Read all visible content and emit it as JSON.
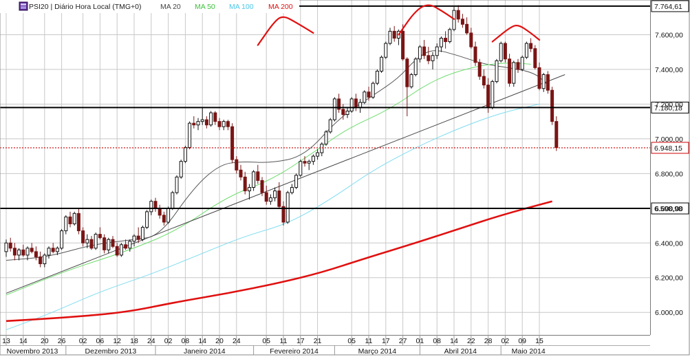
{
  "legend": {
    "title": "PSI20 | Diário Hora Local (TMG+0)",
    "ma20": "MA 20",
    "ma50": "MA 50",
    "ma100": "MA 100",
    "ma200": "MA 200"
  },
  "colors": {
    "candle_up": "#111111",
    "candle_down": "#7a1515",
    "ma20": "#555555",
    "ma50": "#6bdc6b",
    "ma100": "#7fdcf0",
    "ma200": "#e01010",
    "hline": "#000000",
    "last_line": "#cc0000",
    "annotation": "#e01010",
    "grid": "#c8c8c8"
  },
  "chart_data": {
    "type": "candlestick",
    "title": "PSI20 | Diário Hora Local (TMG+0)",
    "ylim": [
      5870,
      7800
    ],
    "y_ticks": [
      6000,
      6200,
      6400,
      6600,
      6800,
      7000,
      7200,
      7400,
      7600
    ],
    "y_tick_labels": [
      "6.000,00",
      "6.200,00",
      "6.400,00",
      "6.600,00",
      "6.800,00",
      "7.000,00",
      "7.200,00",
      "7.400,00",
      "7.600,00"
    ],
    "x_day_ticks": [
      {
        "i": 0,
        "label": "13"
      },
      {
        "i": 4,
        "label": "14"
      },
      {
        "i": 9,
        "label": "20"
      },
      {
        "i": 13,
        "label": "26"
      },
      {
        "i": 18,
        "label": "02"
      },
      {
        "i": 22,
        "label": "06"
      },
      {
        "i": 26,
        "label": "12"
      },
      {
        "i": 30,
        "label": "18"
      },
      {
        "i": 34,
        "label": "24"
      },
      {
        "i": 38,
        "label": "02"
      },
      {
        "i": 42,
        "label": "08"
      },
      {
        "i": 46,
        "label": "14"
      },
      {
        "i": 50,
        "label": "20"
      },
      {
        "i": 54,
        "label": "24"
      },
      {
        "i": 61,
        "label": "05"
      },
      {
        "i": 65,
        "label": "11"
      },
      {
        "i": 69,
        "label": "17"
      },
      {
        "i": 73,
        "label": "21"
      },
      {
        "i": 81,
        "label": "05"
      },
      {
        "i": 85,
        "label": "11"
      },
      {
        "i": 89,
        "label": "17"
      },
      {
        "i": 93,
        "label": "27"
      },
      {
        "i": 97,
        "label": "01"
      },
      {
        "i": 101,
        "label": "08"
      },
      {
        "i": 105,
        "label": "14"
      },
      {
        "i": 109,
        "label": "22"
      },
      {
        "i": 113,
        "label": "28"
      },
      {
        "i": 117,
        "label": "02"
      },
      {
        "i": 121,
        "label": "09"
      },
      {
        "i": 125,
        "label": "15"
      }
    ],
    "x_month_labels": [
      {
        "i": -1,
        "end": 14,
        "label": "Novembro 2013"
      },
      {
        "i": 14,
        "end": 35,
        "label": "Dezembro 2013"
      },
      {
        "i": 35,
        "end": 58,
        "label": "Janeiro 2014"
      },
      {
        "i": 58,
        "end": 77,
        "label": "Fevereiro 2014"
      },
      {
        "i": 77,
        "end": 97,
        "label": "Março 2014"
      },
      {
        "i": 97,
        "end": 116,
        "label": "Abril 2014"
      },
      {
        "i": 116,
        "end": 150,
        "label": "Maio 2014"
      }
    ],
    "ohlc": [
      [
        6350,
        6420,
        6320,
        6400
      ],
      [
        6400,
        6430,
        6350,
        6370
      ],
      [
        6370,
        6400,
        6300,
        6330
      ],
      [
        6330,
        6370,
        6300,
        6360
      ],
      [
        6360,
        6390,
        6320,
        6330
      ],
      [
        6330,
        6380,
        6300,
        6370
      ],
      [
        6370,
        6400,
        6340,
        6350
      ],
      [
        6350,
        6380,
        6300,
        6320
      ],
      [
        6320,
        6350,
        6260,
        6280
      ],
      [
        6280,
        6340,
        6260,
        6330
      ],
      [
        6330,
        6380,
        6310,
        6370
      ],
      [
        6370,
        6400,
        6340,
        6350
      ],
      [
        6350,
        6380,
        6330,
        6370
      ],
      [
        6370,
        6480,
        6360,
        6470
      ],
      [
        6470,
        6560,
        6450,
        6550
      ],
      [
        6550,
        6580,
        6490,
        6510
      ],
      [
        6510,
        6580,
        6500,
        6570
      ],
      [
        6570,
        6600,
        6450,
        6470
      ],
      [
        6470,
        6490,
        6380,
        6400
      ],
      [
        6400,
        6450,
        6370,
        6420
      ],
      [
        6420,
        6440,
        6360,
        6370
      ],
      [
        6370,
        6460,
        6360,
        6450
      ],
      [
        6450,
        6490,
        6420,
        6430
      ],
      [
        6430,
        6450,
        6340,
        6360
      ],
      [
        6360,
        6430,
        6340,
        6420
      ],
      [
        6420,
        6440,
        6370,
        6380
      ],
      [
        6380,
        6400,
        6320,
        6330
      ],
      [
        6330,
        6400,
        6320,
        6390
      ],
      [
        6390,
        6420,
        6360,
        6370
      ],
      [
        6370,
        6420,
        6350,
        6410
      ],
      [
        6410,
        6450,
        6380,
        6440
      ],
      [
        6440,
        6490,
        6400,
        6420
      ],
      [
        6420,
        6500,
        6410,
        6490
      ],
      [
        6490,
        6590,
        6480,
        6580
      ],
      [
        6580,
        6650,
        6560,
        6640
      ],
      [
        6640,
        6660,
        6580,
        6600
      ],
      [
        6600,
        6620,
        6540,
        6560
      ],
      [
        6560,
        6580,
        6500,
        6520
      ],
      [
        6520,
        6610,
        6510,
        6600
      ],
      [
        6600,
        6700,
        6590,
        6690
      ],
      [
        6690,
        6790,
        6680,
        6780
      ],
      [
        6780,
        6880,
        6770,
        6870
      ],
      [
        6870,
        6960,
        6860,
        6950
      ],
      [
        6950,
        7100,
        6940,
        7090
      ],
      [
        7090,
        7130,
        7060,
        7080
      ],
      [
        7080,
        7120,
        7050,
        7100
      ],
      [
        7100,
        7180,
        7080,
        7110
      ],
      [
        7110,
        7130,
        7060,
        7080
      ],
      [
        7080,
        7160,
        7070,
        7150
      ],
      [
        7150,
        7160,
        7080,
        7100
      ],
      [
        7100,
        7120,
        7050,
        7070
      ],
      [
        7070,
        7110,
        7050,
        7100
      ],
      [
        7100,
        7110,
        7050,
        7070
      ],
      [
        7070,
        7090,
        6860,
        6880
      ],
      [
        6880,
        6900,
        6800,
        6820
      ],
      [
        6820,
        6850,
        6760,
        6780
      ],
      [
        6780,
        6810,
        6680,
        6700
      ],
      [
        6700,
        6740,
        6650,
        6720
      ],
      [
        6720,
        6820,
        6700,
        6810
      ],
      [
        6810,
        6850,
        6740,
        6760
      ],
      [
        6760,
        6780,
        6670,
        6690
      ],
      [
        6690,
        6730,
        6620,
        6640
      ],
      [
        6640,
        6680,
        6620,
        6660
      ],
      [
        6660,
        6720,
        6640,
        6700
      ],
      [
        6700,
        6750,
        6600,
        6610
      ],
      [
        6610,
        6640,
        6500,
        6520
      ],
      [
        6520,
        6700,
        6510,
        6690
      ],
      [
        6690,
        6740,
        6680,
        6720
      ],
      [
        6720,
        6800,
        6710,
        6790
      ],
      [
        6790,
        6880,
        6780,
        6870
      ],
      [
        6870,
        6900,
        6840,
        6860
      ],
      [
        6860,
        6880,
        6820,
        6870
      ],
      [
        6870,
        6910,
        6850,
        6900
      ],
      [
        6900,
        6940,
        6880,
        6920
      ],
      [
        6920,
        6980,
        6900,
        6970
      ],
      [
        6970,
        7050,
        6960,
        7040
      ],
      [
        7040,
        7120,
        7030,
        7110
      ],
      [
        7110,
        7240,
        7100,
        7230
      ],
      [
        7230,
        7260,
        7150,
        7170
      ],
      [
        7170,
        7200,
        7110,
        7140
      ],
      [
        7140,
        7180,
        7120,
        7160
      ],
      [
        7160,
        7240,
        7150,
        7230
      ],
      [
        7230,
        7260,
        7160,
        7180
      ],
      [
        7180,
        7230,
        7150,
        7210
      ],
      [
        7210,
        7280,
        7200,
        7270
      ],
      [
        7270,
        7300,
        7220,
        7240
      ],
      [
        7240,
        7330,
        7230,
        7320
      ],
      [
        7320,
        7400,
        7310,
        7390
      ],
      [
        7390,
        7480,
        7380,
        7470
      ],
      [
        7470,
        7560,
        7460,
        7550
      ],
      [
        7550,
        7640,
        7540,
        7620
      ],
      [
        7620,
        7650,
        7560,
        7580
      ],
      [
        7580,
        7630,
        7540,
        7620
      ],
      [
        7620,
        7660,
        7450,
        7460
      ],
      [
        7460,
        7470,
        7130,
        7300
      ],
      [
        7300,
        7380,
        7290,
        7370
      ],
      [
        7370,
        7470,
        7360,
        7460
      ],
      [
        7460,
        7540,
        7440,
        7530
      ],
      [
        7530,
        7570,
        7460,
        7480
      ],
      [
        7480,
        7530,
        7430,
        7450
      ],
      [
        7450,
        7500,
        7400,
        7480
      ],
      [
        7480,
        7550,
        7460,
        7530
      ],
      [
        7530,
        7590,
        7500,
        7580
      ],
      [
        7580,
        7620,
        7520,
        7560
      ],
      [
        7560,
        7640,
        7550,
        7630
      ],
      [
        7630,
        7760,
        7620,
        7740
      ],
      [
        7740,
        7770,
        7670,
        7690
      ],
      [
        7690,
        7720,
        7640,
        7660
      ],
      [
        7660,
        7700,
        7600,
        7610
      ],
      [
        7610,
        7640,
        7520,
        7530
      ],
      [
        7530,
        7560,
        7420,
        7440
      ],
      [
        7440,
        7460,
        7340,
        7360
      ],
      [
        7360,
        7400,
        7290,
        7310
      ],
      [
        7310,
        7350,
        7150,
        7180
      ],
      [
        7180,
        7340,
        7170,
        7330
      ],
      [
        7330,
        7460,
        7320,
        7450
      ],
      [
        7450,
        7560,
        7440,
        7550
      ],
      [
        7550,
        7560,
        7440,
        7460
      ],
      [
        7460,
        7490,
        7300,
        7320
      ],
      [
        7320,
        7450,
        7300,
        7440
      ],
      [
        7440,
        7460,
        7380,
        7400
      ],
      [
        7400,
        7480,
        7390,
        7470
      ],
      [
        7470,
        7560,
        7460,
        7550
      ],
      [
        7550,
        7580,
        7500,
        7520
      ],
      [
        7520,
        7540,
        7400,
        7410
      ],
      [
        7410,
        7440,
        7280,
        7290
      ],
      [
        7290,
        7380,
        7270,
        7370
      ],
      [
        7370,
        7390,
        7260,
        7280
      ],
      [
        7280,
        7300,
        7080,
        7100
      ],
      [
        7100,
        7130,
        6930,
        6950
      ]
    ],
    "series": [
      {
        "name": "MA 20",
        "anchors": [
          [
            0,
            6300
          ],
          [
            10,
            6320
          ],
          [
            20,
            6390
          ],
          [
            30,
            6420
          ],
          [
            36,
            6440
          ],
          [
            44,
            6720
          ],
          [
            50,
            6850
          ],
          [
            55,
            6870
          ],
          [
            62,
            6860
          ],
          [
            70,
            6900
          ],
          [
            78,
            7120
          ],
          [
            86,
            7250
          ],
          [
            92,
            7350
          ],
          [
            96,
            7460
          ],
          [
            100,
            7520
          ],
          [
            106,
            7480
          ],
          [
            112,
            7430
          ],
          [
            118,
            7410
          ],
          [
            124,
            7380
          ],
          [
            127,
            7310
          ]
        ]
      },
      {
        "name": "MA 50",
        "anchors": [
          [
            0,
            6100
          ],
          [
            14,
            6240
          ],
          [
            28,
            6350
          ],
          [
            40,
            6470
          ],
          [
            52,
            6670
          ],
          [
            62,
            6760
          ],
          [
            72,
            6920
          ],
          [
            80,
            7060
          ],
          [
            90,
            7170
          ],
          [
            100,
            7340
          ],
          [
            110,
            7420
          ],
          [
            118,
            7440
          ],
          [
            123,
            7430
          ]
        ]
      },
      {
        "name": "MA 100",
        "anchors": [
          [
            0,
            5900
          ],
          [
            10,
            5990
          ],
          [
            22,
            6120
          ],
          [
            34,
            6220
          ],
          [
            46,
            6340
          ],
          [
            56,
            6440
          ],
          [
            66,
            6510
          ],
          [
            76,
            6650
          ],
          [
            86,
            6820
          ],
          [
            96,
            6950
          ],
          [
            106,
            7060
          ],
          [
            116,
            7150
          ],
          [
            125,
            7200
          ]
        ]
      },
      {
        "name": "MA 200",
        "anchors": [
          [
            0,
            5950
          ],
          [
            14,
            5970
          ],
          [
            28,
            6000
          ],
          [
            40,
            6060
          ],
          [
            52,
            6110
          ],
          [
            64,
            6170
          ],
          [
            74,
            6230
          ],
          [
            84,
            6310
          ],
          [
            96,
            6400
          ],
          [
            106,
            6480
          ],
          [
            116,
            6560
          ],
          [
            128,
            6640
          ]
        ]
      }
    ],
    "trendline": [
      [
        0,
        6110
      ],
      [
        131,
        7370
      ]
    ],
    "horizontal_levels": [
      {
        "value": 7764.61,
        "label": "7.764,61"
      },
      {
        "value": 7180.18,
        "label": "7.180,18"
      },
      {
        "value": 6598.98,
        "label": "6.598,98"
      }
    ],
    "last_price": {
      "value": 6948.15,
      "label": "6.948,15"
    },
    "annotations": [
      {
        "type": "arc",
        "points": [
          [
            59,
            7540
          ],
          [
            63,
            7680
          ],
          [
            65,
            7710
          ],
          [
            68,
            7670
          ],
          [
            72,
            7610
          ]
        ]
      },
      {
        "type": "arc",
        "points": [
          [
            92,
            7600
          ],
          [
            96,
            7740
          ],
          [
            99,
            7780
          ],
          [
            102,
            7740
          ],
          [
            105,
            7690
          ]
        ]
      },
      {
        "type": "arc",
        "points": [
          [
            114,
            7560
          ],
          [
            118,
            7640
          ],
          [
            120,
            7660
          ],
          [
            123,
            7610
          ],
          [
            125,
            7570
          ]
        ]
      }
    ]
  }
}
